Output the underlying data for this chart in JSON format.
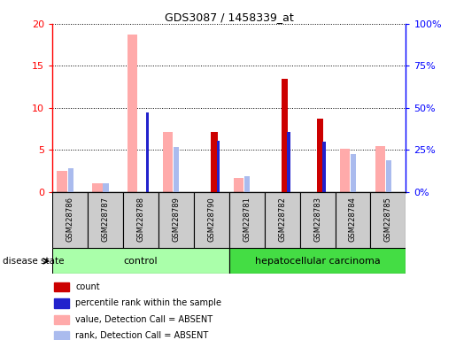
{
  "title": "GDS3087 / 1458339_at",
  "samples": [
    "GSM228786",
    "GSM228787",
    "GSM228788",
    "GSM228789",
    "GSM228790",
    "GSM228781",
    "GSM228782",
    "GSM228783",
    "GSM228784",
    "GSM228785"
  ],
  "count_values": [
    null,
    null,
    null,
    null,
    7.2,
    null,
    13.5,
    8.7,
    null,
    null
  ],
  "percentile_values": [
    null,
    null,
    9.5,
    null,
    6.1,
    null,
    7.2,
    6.0,
    null,
    null
  ],
  "value_absent": [
    2.5,
    1.1,
    18.7,
    7.1,
    null,
    1.7,
    null,
    null,
    5.2,
    5.5
  ],
  "rank_absent": [
    2.8,
    1.1,
    null,
    5.4,
    null,
    1.9,
    null,
    null,
    4.5,
    3.8
  ],
  "ylim": [
    0,
    20
  ],
  "yticks_left": [
    0,
    5,
    10,
    15,
    20
  ],
  "yticks_right": [
    0,
    25,
    50,
    75,
    100
  ],
  "yticklabels_right": [
    "0%",
    "25%",
    "50%",
    "75%",
    "100%"
  ],
  "count_color": "#cc0000",
  "percentile_color": "#2222cc",
  "value_absent_color": "#ffaaaa",
  "rank_absent_color": "#aabbee",
  "control_color": "#aaffaa",
  "carcinoma_color": "#44dd44",
  "control_label": "control",
  "carcinoma_label": "hepatocellular carcinoma",
  "legend_items": [
    [
      "#cc0000",
      "count"
    ],
    [
      "#2222cc",
      "percentile rank within the sample"
    ],
    [
      "#ffaaaa",
      "value, Detection Call = ABSENT"
    ],
    [
      "#aabbee",
      "rank, Detection Call = ABSENT"
    ]
  ]
}
